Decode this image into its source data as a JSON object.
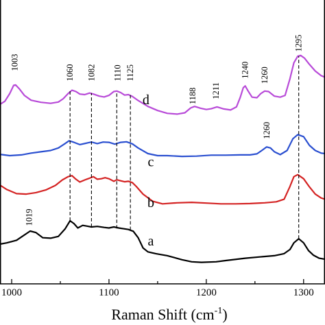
{
  "chart_data": {
    "type": "line",
    "xlabel": "Raman Shift (cm",
    "xlabel_superscript": "-1",
    "xlabel_close": ")",
    "xlim": [
      988,
      1322
    ],
    "ylim": [
      0,
      1
    ],
    "y_ticks_shown": false,
    "x_ticks": [
      1000,
      1100,
      1200,
      1300
    ],
    "x_tick_labels": [
      "1000",
      "1100",
      "1200",
      "1300"
    ],
    "series": [
      {
        "name": "a",
        "color": "#000000",
        "label_at": [
          1143,
          0.15
        ],
        "points": [
          [
            988,
            0.155
          ],
          [
            995,
            0.16
          ],
          [
            1005,
            0.17
          ],
          [
            1012,
            0.188
          ],
          [
            1019,
            0.206
          ],
          [
            1025,
            0.2
          ],
          [
            1032,
            0.18
          ],
          [
            1040,
            0.178
          ],
          [
            1048,
            0.185
          ],
          [
            1055,
            0.215
          ],
          [
            1060,
            0.246
          ],
          [
            1064,
            0.235
          ],
          [
            1068,
            0.218
          ],
          [
            1073,
            0.228
          ],
          [
            1078,
            0.225
          ],
          [
            1082,
            0.222
          ],
          [
            1088,
            0.224
          ],
          [
            1095,
            0.22
          ],
          [
            1100,
            0.218
          ],
          [
            1105,
            0.222
          ],
          [
            1110,
            0.218
          ],
          [
            1115,
            0.215
          ],
          [
            1120,
            0.212
          ],
          [
            1125,
            0.205
          ],
          [
            1130,
            0.18
          ],
          [
            1135,
            0.14
          ],
          [
            1140,
            0.125
          ],
          [
            1148,
            0.118
          ],
          [
            1160,
            0.11
          ],
          [
            1175,
            0.094
          ],
          [
            1185,
            0.086
          ],
          [
            1195,
            0.084
          ],
          [
            1210,
            0.086
          ],
          [
            1220,
            0.091
          ],
          [
            1240,
            0.1
          ],
          [
            1255,
            0.105
          ],
          [
            1270,
            0.11
          ],
          [
            1280,
            0.118
          ],
          [
            1286,
            0.134
          ],
          [
            1290,
            0.16
          ],
          [
            1295,
            0.176
          ],
          [
            1300,
            0.16
          ],
          [
            1305,
            0.13
          ],
          [
            1310,
            0.112
          ],
          [
            1316,
            0.1
          ],
          [
            1322,
            0.096
          ]
        ]
      },
      {
        "name": "b",
        "color": "#d42222",
        "label_at": [
          1143,
          0.3
        ],
        "points": [
          [
            988,
            0.385
          ],
          [
            995,
            0.368
          ],
          [
            1005,
            0.352
          ],
          [
            1015,
            0.35
          ],
          [
            1025,
            0.356
          ],
          [
            1035,
            0.366
          ],
          [
            1045,
            0.384
          ],
          [
            1052,
            0.405
          ],
          [
            1058,
            0.418
          ],
          [
            1062,
            0.422
          ],
          [
            1066,
            0.408
          ],
          [
            1070,
            0.397
          ],
          [
            1075,
            0.405
          ],
          [
            1080,
            0.412
          ],
          [
            1084,
            0.418
          ],
          [
            1088,
            0.408
          ],
          [
            1092,
            0.41
          ],
          [
            1096,
            0.414
          ],
          [
            1100,
            0.41
          ],
          [
            1105,
            0.4
          ],
          [
            1108,
            0.406
          ],
          [
            1112,
            0.402
          ],
          [
            1116,
            0.398
          ],
          [
            1120,
            0.4
          ],
          [
            1124,
            0.395
          ],
          [
            1128,
            0.38
          ],
          [
            1135,
            0.35
          ],
          [
            1145,
            0.322
          ],
          [
            1155,
            0.312
          ],
          [
            1170,
            0.316
          ],
          [
            1185,
            0.318
          ],
          [
            1200,
            0.315
          ],
          [
            1215,
            0.312
          ],
          [
            1230,
            0.312
          ],
          [
            1245,
            0.313
          ],
          [
            1260,
            0.316
          ],
          [
            1272,
            0.32
          ],
          [
            1280,
            0.33
          ],
          [
            1286,
            0.38
          ],
          [
            1290,
            0.418
          ],
          [
            1294,
            0.426
          ],
          [
            1300,
            0.41
          ],
          [
            1306,
            0.378
          ],
          [
            1312,
            0.35
          ],
          [
            1318,
            0.335
          ],
          [
            1322,
            0.33
          ]
        ]
      },
      {
        "name": "c",
        "color": "#2a4fd0",
        "label_at": [
          1143,
          0.458
        ],
        "points": [
          [
            988,
            0.505
          ],
          [
            998,
            0.5
          ],
          [
            1010,
            0.503
          ],
          [
            1020,
            0.51
          ],
          [
            1030,
            0.515
          ],
          [
            1040,
            0.52
          ],
          [
            1048,
            0.53
          ],
          [
            1054,
            0.545
          ],
          [
            1059,
            0.558
          ],
          [
            1064,
            0.552
          ],
          [
            1070,
            0.543
          ],
          [
            1076,
            0.548
          ],
          [
            1082,
            0.553
          ],
          [
            1088,
            0.547
          ],
          [
            1094,
            0.553
          ],
          [
            1100,
            0.552
          ],
          [
            1106,
            0.545
          ],
          [
            1112,
            0.552
          ],
          [
            1118,
            0.554
          ],
          [
            1124,
            0.546
          ],
          [
            1130,
            0.53
          ],
          [
            1140,
            0.508
          ],
          [
            1150,
            0.5
          ],
          [
            1160,
            0.5
          ],
          [
            1175,
            0.497
          ],
          [
            1190,
            0.498
          ],
          [
            1205,
            0.502
          ],
          [
            1220,
            0.502
          ],
          [
            1235,
            0.503
          ],
          [
            1245,
            0.503
          ],
          [
            1252,
            0.507
          ],
          [
            1257,
            0.52
          ],
          [
            1262,
            0.534
          ],
          [
            1266,
            0.53
          ],
          [
            1270,
            0.515
          ],
          [
            1276,
            0.504
          ],
          [
            1283,
            0.52
          ],
          [
            1289,
            0.566
          ],
          [
            1294,
            0.582
          ],
          [
            1300,
            0.574
          ],
          [
            1306,
            0.54
          ],
          [
            1312,
            0.52
          ],
          [
            1318,
            0.51
          ],
          [
            1322,
            0.508
          ]
        ]
      },
      {
        "name": "d",
        "color": "#b84ad8",
        "label_at": [
          1138,
          0.7
        ],
        "points": [
          [
            988,
            0.7
          ],
          [
            993,
            0.712
          ],
          [
            998,
            0.742
          ],
          [
            1002,
            0.774
          ],
          [
            1004,
            0.776
          ],
          [
            1008,
            0.76
          ],
          [
            1013,
            0.735
          ],
          [
            1020,
            0.716
          ],
          [
            1030,
            0.708
          ],
          [
            1040,
            0.704
          ],
          [
            1048,
            0.709
          ],
          [
            1053,
            0.722
          ],
          [
            1058,
            0.742
          ],
          [
            1062,
            0.755
          ],
          [
            1066,
            0.75
          ],
          [
            1070,
            0.74
          ],
          [
            1075,
            0.738
          ],
          [
            1080,
            0.744
          ],
          [
            1084,
            0.74
          ],
          [
            1090,
            0.732
          ],
          [
            1095,
            0.729
          ],
          [
            1100,
            0.735
          ],
          [
            1105,
            0.75
          ],
          [
            1108,
            0.752
          ],
          [
            1112,
            0.746
          ],
          [
            1116,
            0.736
          ],
          [
            1120,
            0.738
          ],
          [
            1124,
            0.731
          ],
          [
            1130,
            0.715
          ],
          [
            1140,
            0.692
          ],
          [
            1150,
            0.676
          ],
          [
            1160,
            0.665
          ],
          [
            1170,
            0.662
          ],
          [
            1178,
            0.667
          ],
          [
            1184,
            0.686
          ],
          [
            1188,
            0.692
          ],
          [
            1194,
            0.685
          ],
          [
            1200,
            0.68
          ],
          [
            1205,
            0.683
          ],
          [
            1211,
            0.69
          ],
          [
            1218,
            0.682
          ],
          [
            1225,
            0.678
          ],
          [
            1231,
            0.69
          ],
          [
            1235,
            0.728
          ],
          [
            1238,
            0.765
          ],
          [
            1240,
            0.772
          ],
          [
            1243,
            0.752
          ],
          [
            1247,
            0.728
          ],
          [
            1252,
            0.726
          ],
          [
            1256,
            0.742
          ],
          [
            1260,
            0.752
          ],
          [
            1264,
            0.75
          ],
          [
            1270,
            0.732
          ],
          [
            1276,
            0.728
          ],
          [
            1281,
            0.735
          ],
          [
            1286,
            0.8
          ],
          [
            1290,
            0.862
          ],
          [
            1294,
            0.888
          ],
          [
            1297,
            0.891
          ],
          [
            1301,
            0.88
          ],
          [
            1306,
            0.856
          ],
          [
            1312,
            0.83
          ],
          [
            1318,
            0.812
          ],
          [
            1322,
            0.806
          ]
        ]
      }
    ],
    "peak_labels": [
      {
        "text": "1003",
        "x": 1003,
        "y": 0.83
      },
      {
        "text": "1060",
        "x": 1060,
        "y": 0.79
      },
      {
        "text": "1082",
        "x": 1082,
        "y": 0.79
      },
      {
        "text": "1110",
        "x": 1109,
        "y": 0.79
      },
      {
        "text": "1125",
        "x": 1122,
        "y": 0.79
      },
      {
        "text": "1188",
        "x": 1186,
        "y": 0.7
      },
      {
        "text": "1211",
        "x": 1210,
        "y": 0.72
      },
      {
        "text": "1240",
        "x": 1240,
        "y": 0.8
      },
      {
        "text": "1260",
        "x": 1260,
        "y": 0.78
      },
      {
        "text": "1295",
        "x": 1295,
        "y": 0.905
      },
      {
        "text": "1260",
        "x": 1262,
        "y": 0.565
      },
      {
        "text": "1019",
        "x": 1018,
        "y": 0.226
      }
    ],
    "dashed_lines": [
      {
        "x": 1060,
        "y0": 0.246,
        "y1": 0.755
      },
      {
        "x": 1082,
        "y0": 0.222,
        "y1": 0.744
      },
      {
        "x": 1108,
        "y0": 0.216,
        "y1": 0.75
      },
      {
        "x": 1122,
        "y0": 0.21,
        "y1": 0.736
      },
      {
        "x": 1295,
        "y0": 0.176,
        "y1": 0.888
      }
    ]
  }
}
